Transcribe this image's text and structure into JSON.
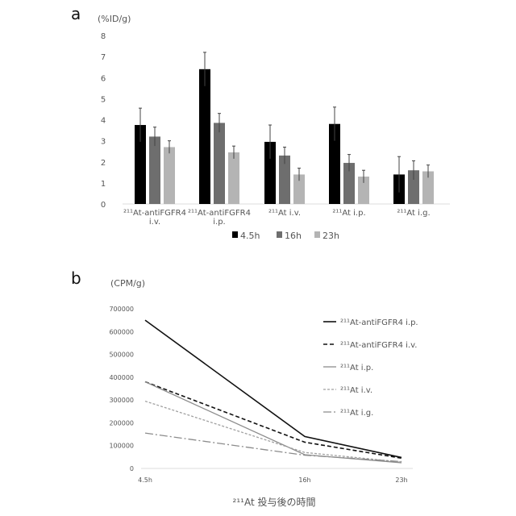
{
  "chart_data": [
    {
      "type": "bar",
      "panel_label": "a",
      "ylabel": "(%ID/g)",
      "ylim": [
        0,
        8
      ],
      "yticks": [
        0,
        1,
        2,
        3,
        4,
        5,
        6,
        7,
        8
      ],
      "categories": [
        [
          "²¹¹At-antiFGFR4",
          "i.v."
        ],
        [
          "²¹¹At-antiFGFR4",
          "i.p."
        ],
        [
          "²¹¹At i.v."
        ],
        [
          "²¹¹At i.p."
        ],
        [
          "²¹¹At i.g."
        ]
      ],
      "legend_position": "bottom",
      "series": [
        {
          "name": "4.5h",
          "color": "#000000",
          "values": [
            3.75,
            6.4,
            2.95,
            3.8,
            1.4
          ],
          "error": [
            0.8,
            0.8,
            0.8,
            0.8,
            0.85
          ]
        },
        {
          "name": "16h",
          "color": "#6e6e6e",
          "values": [
            3.2,
            3.85,
            2.3,
            1.95,
            1.6
          ],
          "error": [
            0.45,
            0.45,
            0.4,
            0.4,
            0.45
          ]
        },
        {
          "name": "23h",
          "color": "#b4b4b4",
          "values": [
            2.7,
            2.45,
            1.4,
            1.3,
            1.55
          ],
          "error": [
            0.3,
            0.3,
            0.3,
            0.3,
            0.3
          ]
        }
      ]
    },
    {
      "type": "line",
      "panel_label": "b",
      "ylabel": "(CPM/g)",
      "xlabel": "²¹¹At 投与後の時間",
      "ylim": [
        0,
        700000
      ],
      "yticks": [
        0,
        100000,
        200000,
        300000,
        400000,
        500000,
        600000,
        700000
      ],
      "x": [
        "4.5h",
        "16h",
        "23h"
      ],
      "x_hours": [
        4.5,
        16,
        23
      ],
      "legend_position": "right",
      "series": [
        {
          "name": "²¹¹At-antiFGFR4 i.p.",
          "color": "#111111",
          "dash": "solid",
          "values": [
            650000,
            140000,
            48000
          ]
        },
        {
          "name": "²¹¹At-antiFGFR4 i.v.",
          "color": "#111111",
          "dash": "dashed",
          "values": [
            380000,
            115000,
            45000
          ]
        },
        {
          "name": "²¹¹At i.p.",
          "color": "#8c8c8c",
          "dash": "solid",
          "values": [
            380000,
            60000,
            25000
          ]
        },
        {
          "name": "²¹¹At i.v.",
          "color": "#a0a0a0",
          "dash": "dotted",
          "values": [
            295000,
            70000,
            28000
          ]
        },
        {
          "name": "²¹¹At i.g.",
          "color": "#8c8c8c",
          "dash": "dashdot",
          "values": [
            155000,
            58000,
            30000
          ]
        }
      ]
    }
  ]
}
